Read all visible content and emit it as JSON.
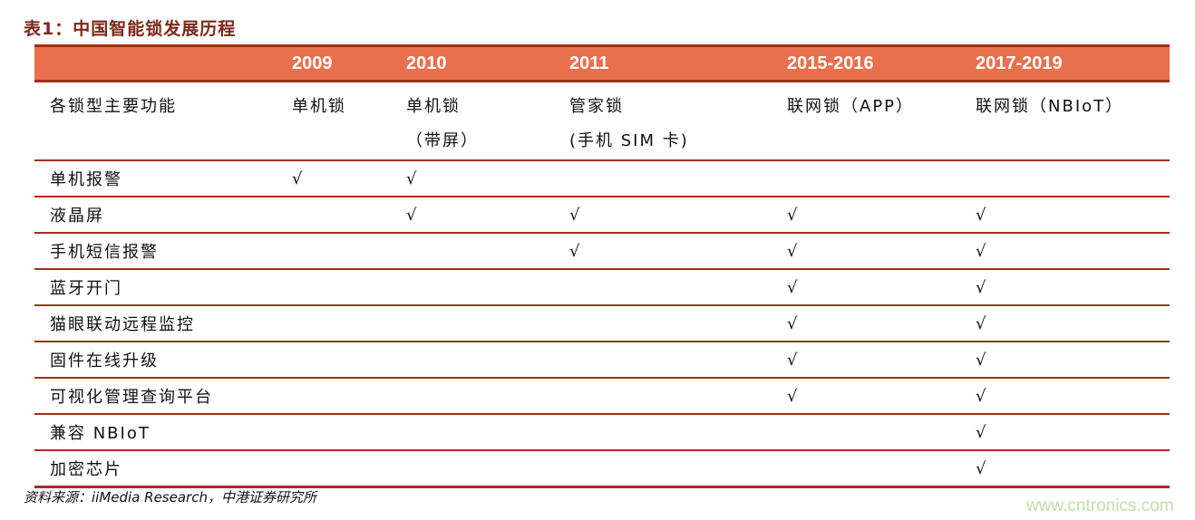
{
  "title": "表1：中国智能锁发展历程",
  "columns": [
    "",
    "2009",
    "2010",
    "2011",
    "2015-2016",
    "2017-2019"
  ],
  "type_row": {
    "label": "各锁型主要功能",
    "cells": [
      [
        "单机锁",
        ""
      ],
      [
        "单机锁",
        "（带屏）"
      ],
      [
        "管家锁",
        "(手机 SIM 卡)"
      ],
      [
        "联网锁（APP）",
        ""
      ],
      [
        "联网锁（NBIoT）",
        ""
      ]
    ]
  },
  "check_mark": "√",
  "rows": [
    {
      "label": "单机报警",
      "checks": [
        true,
        true,
        false,
        false,
        false
      ]
    },
    {
      "label": "液晶屏",
      "checks": [
        false,
        true,
        true,
        true,
        true
      ]
    },
    {
      "label": "手机短信报警",
      "checks": [
        false,
        false,
        true,
        true,
        true
      ]
    },
    {
      "label": "蓝牙开门",
      "checks": [
        false,
        false,
        false,
        true,
        true
      ]
    },
    {
      "label": "猫眼联动远程监控",
      "checks": [
        false,
        false,
        false,
        true,
        true
      ]
    },
    {
      "label": "固件在线升级",
      "checks": [
        false,
        false,
        false,
        true,
        true
      ]
    },
    {
      "label": "可视化管理查询平台",
      "checks": [
        false,
        false,
        false,
        true,
        true
      ]
    },
    {
      "label": "兼容 NBIoT",
      "checks": [
        false,
        false,
        false,
        false,
        true
      ]
    },
    {
      "label": "加密芯片",
      "checks": [
        false,
        false,
        false,
        false,
        true
      ]
    }
  ],
  "source": "资料来源：iiMedia Research，中港证券研究所",
  "watermark": "www.cntronics.com",
  "colors": {
    "header_bg": "#e8704c",
    "border": "#a3301a",
    "title": "#7a2a1a"
  }
}
